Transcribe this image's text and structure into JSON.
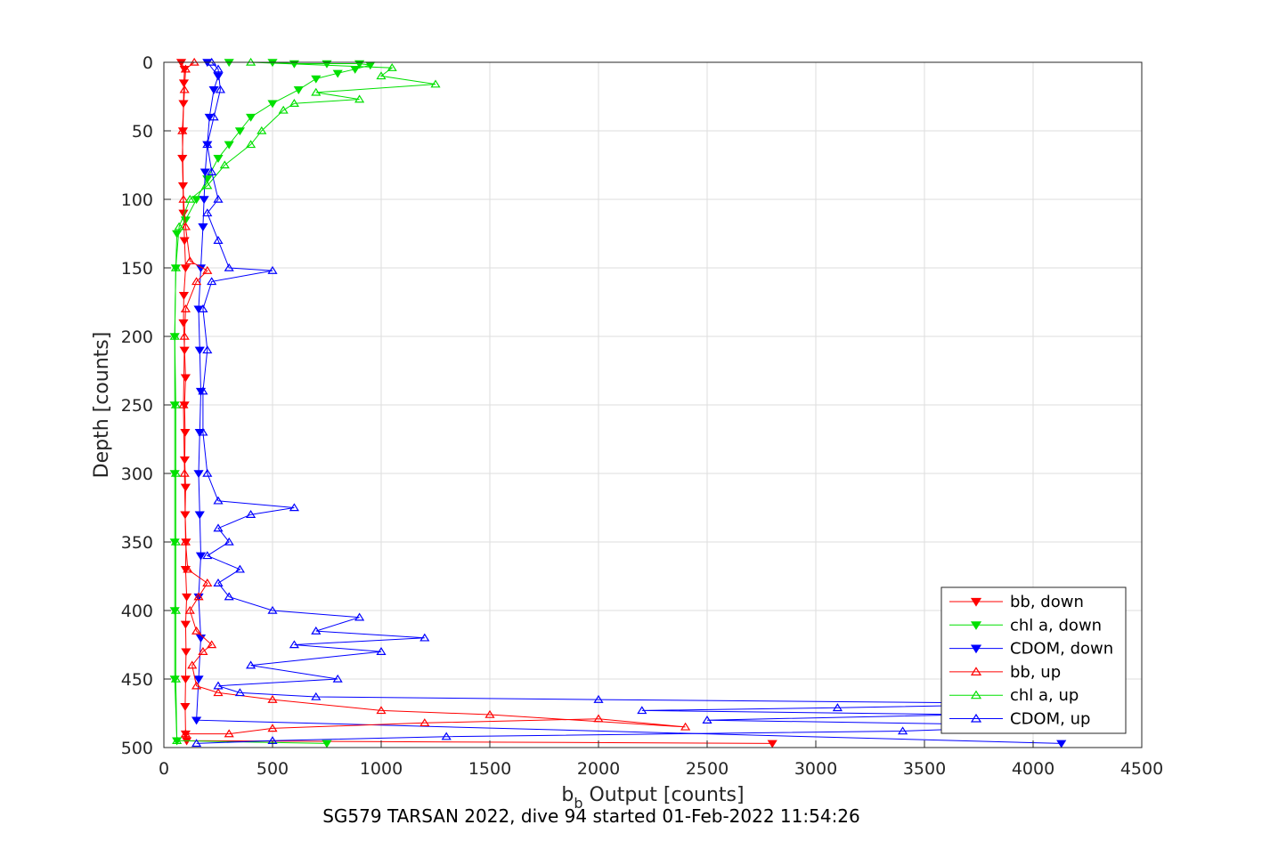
{
  "chart_data": {
    "type": "line",
    "xlabel_base": "b",
    "xlabel_sub": "b",
    "xlabel_rest": " Output [counts]",
    "ylabel": "Depth [counts]",
    "caption": "SG579 TARSAN 2022, dive 94 started 01-Feb-2022 11:54:26",
    "xlim": [
      0,
      4500
    ],
    "ylim": [
      0,
      500
    ],
    "y_reversed": true,
    "grid": true,
    "xticks": [
      "0",
      "500",
      "1000",
      "1500",
      "2000",
      "2500",
      "3000",
      "3500",
      "4000",
      "4500"
    ],
    "yticks": [
      "0",
      "50",
      "100",
      "150",
      "200",
      "250",
      "300",
      "350",
      "400",
      "450",
      "500"
    ],
    "legend_position": "bottom-right",
    "series": [
      {
        "name": "bb, down",
        "color": "#ff0000",
        "marker": "down",
        "points": [
          [
            80,
            0
          ],
          [
            95,
            5
          ],
          [
            92,
            15
          ],
          [
            90,
            30
          ],
          [
            88,
            50
          ],
          [
            85,
            70
          ],
          [
            88,
            90
          ],
          [
            90,
            110
          ],
          [
            95,
            130
          ],
          [
            100,
            150
          ],
          [
            92,
            170
          ],
          [
            90,
            190
          ],
          [
            95,
            210
          ],
          [
            100,
            230
          ],
          [
            95,
            250
          ],
          [
            98,
            270
          ],
          [
            96,
            290
          ],
          [
            100,
            310
          ],
          [
            98,
            330
          ],
          [
            102,
            350
          ],
          [
            100,
            370
          ],
          [
            105,
            390
          ],
          [
            100,
            410
          ],
          [
            102,
            430
          ],
          [
            100,
            450
          ],
          [
            98,
            470
          ],
          [
            100,
            490
          ],
          [
            105,
            495
          ],
          [
            2800,
            497
          ]
        ]
      },
      {
        "name": "chl a, down",
        "color": "#00e000",
        "marker": "down",
        "points": [
          [
            300,
            0
          ],
          [
            500,
            0
          ],
          [
            600,
            1
          ],
          [
            750,
            1
          ],
          [
            900,
            1
          ],
          [
            950,
            2
          ],
          [
            880,
            5
          ],
          [
            800,
            8
          ],
          [
            700,
            12
          ],
          [
            620,
            20
          ],
          [
            500,
            30
          ],
          [
            400,
            40
          ],
          [
            350,
            50
          ],
          [
            300,
            60
          ],
          [
            250,
            70
          ],
          [
            200,
            85
          ],
          [
            150,
            100
          ],
          [
            100,
            115
          ],
          [
            60,
            125
          ],
          [
            55,
            150
          ],
          [
            50,
            200
          ],
          [
            50,
            250
          ],
          [
            50,
            300
          ],
          [
            50,
            350
          ],
          [
            50,
            400
          ],
          [
            50,
            450
          ],
          [
            60,
            495
          ],
          [
            750,
            497
          ]
        ]
      },
      {
        "name": "CDOM, down",
        "color": "#0000ff",
        "marker": "down",
        "points": [
          [
            200,
            0
          ],
          [
            250,
            10
          ],
          [
            230,
            20
          ],
          [
            210,
            40
          ],
          [
            200,
            60
          ],
          [
            190,
            80
          ],
          [
            185,
            100
          ],
          [
            180,
            120
          ],
          [
            170,
            150
          ],
          [
            160,
            180
          ],
          [
            165,
            210
          ],
          [
            170,
            240
          ],
          [
            165,
            270
          ],
          [
            160,
            300
          ],
          [
            165,
            330
          ],
          [
            170,
            360
          ],
          [
            160,
            390
          ],
          [
            170,
            420
          ],
          [
            160,
            450
          ],
          [
            150,
            480
          ],
          [
            4130,
            497
          ]
        ]
      },
      {
        "name": "bb, up",
        "color": "#ff0000",
        "marker": "up",
        "points": [
          [
            100,
            490
          ],
          [
            300,
            490
          ],
          [
            500,
            486
          ],
          [
            1200,
            482
          ],
          [
            2000,
            479
          ],
          [
            2400,
            485
          ],
          [
            1500,
            476
          ],
          [
            1000,
            473
          ],
          [
            500,
            465
          ],
          [
            250,
            460
          ],
          [
            150,
            455
          ],
          [
            130,
            440
          ],
          [
            180,
            430
          ],
          [
            220,
            425
          ],
          [
            150,
            415
          ],
          [
            120,
            400
          ],
          [
            160,
            390
          ],
          [
            200,
            380
          ],
          [
            110,
            370
          ],
          [
            100,
            350
          ],
          [
            95,
            300
          ],
          [
            90,
            250
          ],
          [
            95,
            200
          ],
          [
            100,
            180
          ],
          [
            150,
            160
          ],
          [
            200,
            152
          ],
          [
            120,
            145
          ],
          [
            100,
            120
          ],
          [
            90,
            100
          ],
          [
            85,
            50
          ],
          [
            95,
            20
          ],
          [
            100,
            5
          ],
          [
            140,
            0
          ]
        ]
      },
      {
        "name": "chl a, up",
        "color": "#00e000",
        "marker": "up",
        "points": [
          [
            60,
            495
          ],
          [
            55,
            450
          ],
          [
            55,
            400
          ],
          [
            55,
            350
          ],
          [
            55,
            300
          ],
          [
            55,
            250
          ],
          [
            50,
            200
          ],
          [
            55,
            150
          ],
          [
            70,
            120
          ],
          [
            120,
            100
          ],
          [
            200,
            90
          ],
          [
            280,
            75
          ],
          [
            400,
            60
          ],
          [
            450,
            50
          ],
          [
            550,
            35
          ],
          [
            600,
            30
          ],
          [
            900,
            27
          ],
          [
            700,
            22
          ],
          [
            1250,
            16
          ],
          [
            1000,
            10
          ],
          [
            1050,
            4
          ],
          [
            400,
            0
          ]
        ]
      },
      {
        "name": "CDOM, up",
        "color": "#0000ff",
        "marker": "up",
        "points": [
          [
            150,
            497
          ],
          [
            500,
            495
          ],
          [
            1300,
            492
          ],
          [
            3400,
            488
          ],
          [
            4130,
            484
          ],
          [
            2500,
            480
          ],
          [
            3700,
            476
          ],
          [
            2200,
            473
          ],
          [
            3100,
            471
          ],
          [
            4130,
            468
          ],
          [
            2000,
            465
          ],
          [
            700,
            463
          ],
          [
            350,
            460
          ],
          [
            250,
            455
          ],
          [
            800,
            450
          ],
          [
            400,
            440
          ],
          [
            1000,
            430
          ],
          [
            600,
            425
          ],
          [
            1200,
            420
          ],
          [
            700,
            415
          ],
          [
            900,
            405
          ],
          [
            500,
            400
          ],
          [
            300,
            390
          ],
          [
            250,
            380
          ],
          [
            350,
            370
          ],
          [
            200,
            360
          ],
          [
            300,
            350
          ],
          [
            250,
            340
          ],
          [
            400,
            330
          ],
          [
            600,
            325
          ],
          [
            250,
            320
          ],
          [
            200,
            300
          ],
          [
            180,
            270
          ],
          [
            180,
            240
          ],
          [
            200,
            210
          ],
          [
            180,
            180
          ],
          [
            220,
            160
          ],
          [
            500,
            152
          ],
          [
            300,
            150
          ],
          [
            250,
            130
          ],
          [
            200,
            110
          ],
          [
            250,
            100
          ],
          [
            220,
            80
          ],
          [
            200,
            60
          ],
          [
            230,
            40
          ],
          [
            260,
            20
          ],
          [
            250,
            5
          ],
          [
            220,
            0
          ]
        ]
      }
    ]
  }
}
